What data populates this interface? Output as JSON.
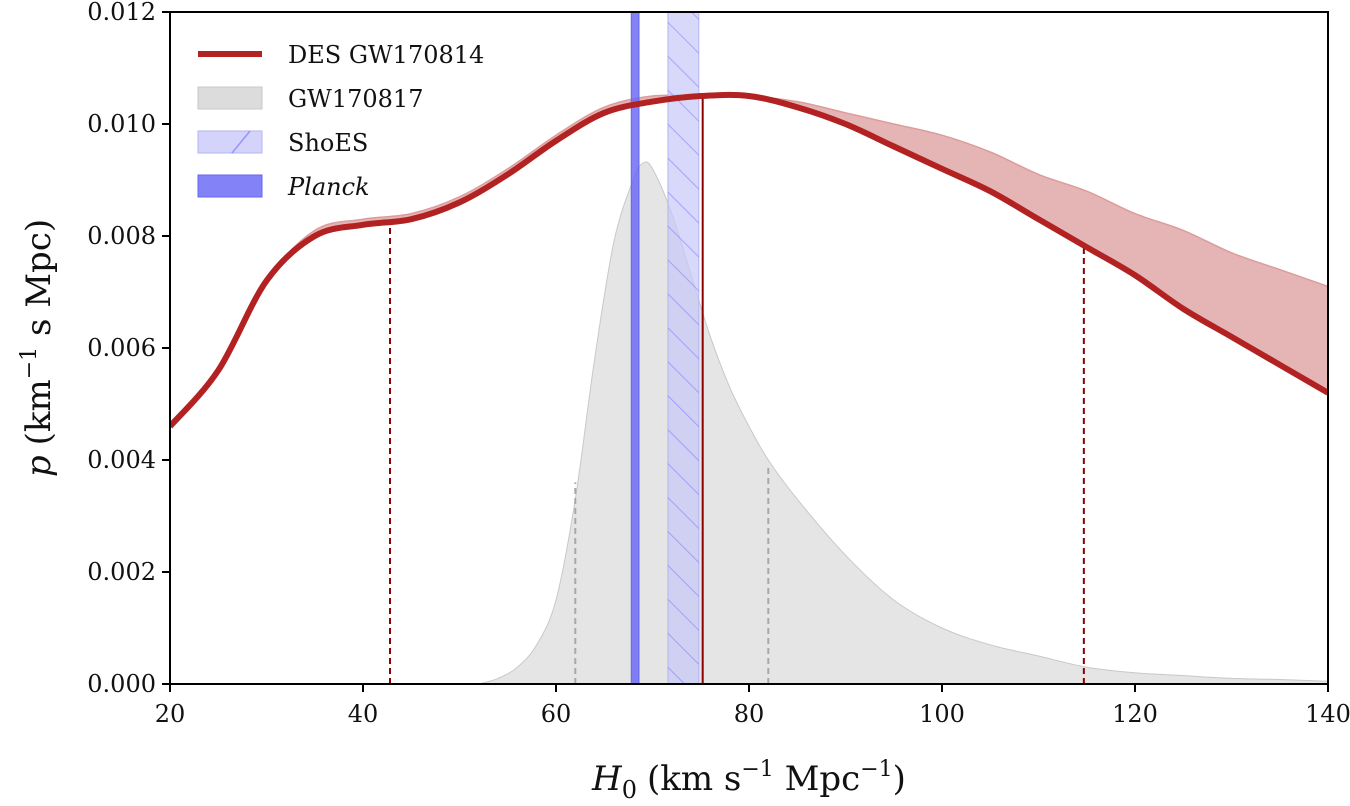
{
  "chart_data": {
    "type": "line",
    "xlabel": {
      "main": "H",
      "sub": "0",
      "units": "(km s",
      "sup1": "−1",
      "units2": " Mpc",
      "sup2": "−1",
      "close": ")"
    },
    "ylabel": {
      "main": "p",
      "units": "(km",
      "sup": "−1",
      "units2": " s Mpc)"
    },
    "xlim": [
      20,
      140
    ],
    "ylim": [
      0.0,
      0.012
    ],
    "xticks": [
      20,
      40,
      60,
      80,
      100,
      120,
      140
    ],
    "xtick_labels": [
      "20",
      "40",
      "60",
      "80",
      "100",
      "120",
      "140"
    ],
    "yticks": [
      0.0,
      0.002,
      0.004,
      0.006,
      0.008,
      0.01,
      0.012
    ],
    "ytick_labels": [
      "0.000",
      "0.002",
      "0.004",
      "0.006",
      "0.008",
      "0.010",
      "0.012"
    ],
    "grid": false,
    "legend_position": "top-left",
    "legend": [
      {
        "label": "DES GW170814",
        "italic": false
      },
      {
        "label": "GW170817",
        "italic": false
      },
      {
        "label": "ShoES",
        "italic": false
      },
      {
        "label": "Planck",
        "italic": true
      }
    ],
    "colors": {
      "des": "#b22222",
      "des_band": "#dc9c9c",
      "gw170817": "#dcdcdc",
      "shoes": "#c8c8fa",
      "planck": "#6464f5"
    },
    "series": [
      {
        "name": "DES GW170814",
        "x": [
          20,
          25,
          30,
          35,
          40,
          45,
          50,
          55,
          60,
          65,
          70,
          75,
          80,
          85,
          90,
          95,
          100,
          105,
          110,
          115,
          120,
          125,
          130,
          135,
          140
        ],
        "y": [
          0.0046,
          0.0056,
          0.0072,
          0.008,
          0.0082,
          0.0083,
          0.0086,
          0.0091,
          0.0097,
          0.0102,
          0.0104,
          0.0105,
          0.0105,
          0.0103,
          0.01,
          0.0096,
          0.0092,
          0.0088,
          0.0083,
          0.0078,
          0.0073,
          0.0067,
          0.0062,
          0.0057,
          0.0052
        ],
        "band_upper": [
          0.0046,
          0.0056,
          0.0072,
          0.0081,
          0.0083,
          0.0084,
          0.0087,
          0.0092,
          0.0098,
          0.0103,
          0.0105,
          0.0105,
          0.0105,
          0.0104,
          0.0102,
          0.01,
          0.0098,
          0.0095,
          0.0091,
          0.0088,
          0.0084,
          0.0081,
          0.0077,
          0.0074,
          0.0071
        ]
      },
      {
        "name": "GW170817",
        "x": [
          52,
          54,
          56,
          58,
          60,
          62,
          64,
          66,
          68,
          69,
          70,
          72,
          74,
          76,
          78,
          80,
          82,
          85,
          90,
          95,
          100,
          105,
          110,
          115,
          120,
          125,
          130,
          135,
          140
        ],
        "y": [
          0.0,
          0.0001,
          0.0003,
          0.0007,
          0.0015,
          0.0033,
          0.0058,
          0.0079,
          0.009,
          0.0093,
          0.0092,
          0.0084,
          0.0073,
          0.0062,
          0.0053,
          0.0046,
          0.004,
          0.0033,
          0.0023,
          0.0015,
          0.001,
          0.0007,
          0.0005,
          0.0003,
          0.0002,
          0.00015,
          0.0001,
          8e-05,
          5e-05
        ]
      }
    ],
    "bands": [
      {
        "name": "ShoES",
        "x0": 71.6,
        "x1": 74.8
      },
      {
        "name": "Planck",
        "x0": 67.8,
        "x1": 68.6
      }
    ],
    "reference_lines": [
      {
        "series": "DES GW170814",
        "x": 42.8,
        "y": 0.0082,
        "style": "dashed"
      },
      {
        "series": "DES GW170814",
        "x": 75.2,
        "y": 0.0105,
        "style": "solid"
      },
      {
        "series": "DES GW170814",
        "x": 114.7,
        "y": 0.0078,
        "style": "dashed"
      },
      {
        "series": "GW170817",
        "x": 62.0,
        "y": 0.0036,
        "style": "dashed"
      },
      {
        "series": "GW170817",
        "x": 82.0,
        "y": 0.0039,
        "style": "dashed"
      }
    ]
  }
}
